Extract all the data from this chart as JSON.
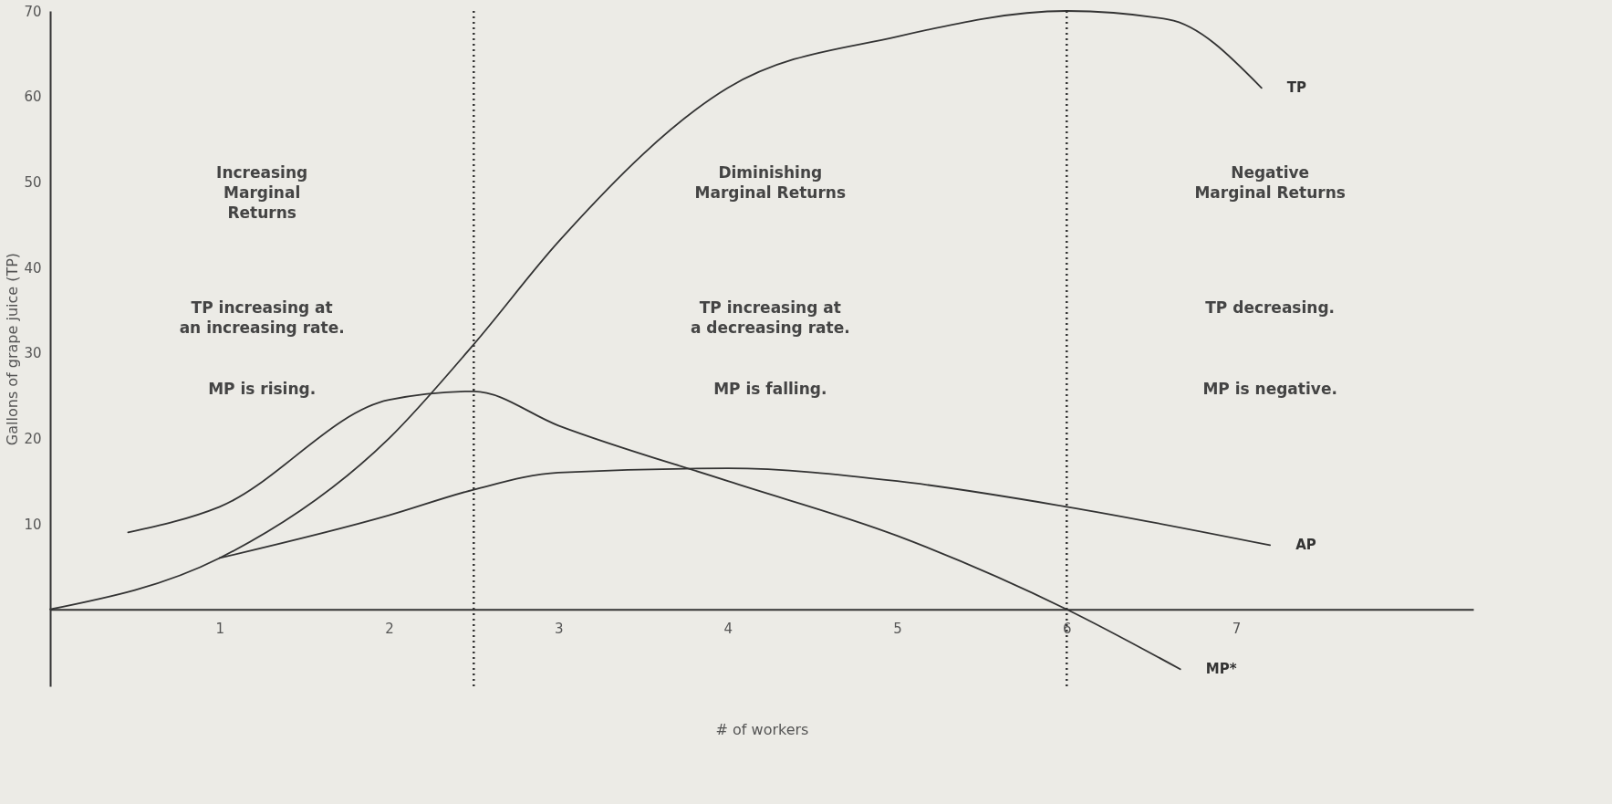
{
  "chart_data": {
    "type": "line",
    "xlabel": "# of workers",
    "ylabel": "Gallons of grape juice (TP)",
    "xlim": [
      0,
      8.4
    ],
    "xticks": [
      {
        "value": 1,
        "label": "1"
      },
      {
        "value": 2,
        "label": "2"
      },
      {
        "value": 3,
        "label": "3"
      },
      {
        "value": 4,
        "label": "4"
      },
      {
        "value": 5,
        "label": "5"
      },
      {
        "value": 6,
        "label": "6"
      },
      {
        "value": 7,
        "label": "7"
      }
    ],
    "ylim": [
      -9,
      70
    ],
    "yticks": [
      10,
      20,
      30,
      40,
      50,
      60,
      70
    ],
    "grid": false,
    "legend": false,
    "marker": "none",
    "line_style": "solid",
    "series": [
      {
        "name": "TP",
        "color": "#333333",
        "x": [
          0,
          1,
          2,
          2.5,
          3,
          4,
          5,
          6,
          6.6,
          7.15
        ],
        "values": [
          0,
          6,
          20,
          31,
          43,
          61,
          67,
          70,
          69,
          61
        ]
      },
      {
        "name": "AP",
        "color": "#333333",
        "x": [
          1,
          2,
          2.5,
          3,
          4,
          5,
          6,
          7.2
        ],
        "values": [
          6,
          11,
          14,
          16,
          16.5,
          15,
          12,
          7.5
        ]
      },
      {
        "name": "MP*",
        "color": "#333333",
        "x": [
          0.46,
          1,
          2,
          2.5,
          3,
          4,
          5,
          6,
          6.67
        ],
        "values": [
          9,
          12,
          24.5,
          25.5,
          21.5,
          15,
          8.6,
          0,
          -7
        ]
      }
    ],
    "ref_lines": [
      {
        "axis": "x",
        "value": 2.5,
        "line_style": "dotted",
        "color": "#333333"
      },
      {
        "axis": "x",
        "value": 6,
        "line_style": "dotted",
        "color": "#333333"
      }
    ],
    "annotations": [
      "Increasing\nMarginal\nReturns",
      "TP increasing at\nan increasing rate.",
      "MP is rising.",
      "Diminishing\nMarginal Returns",
      "TP increasing at\na decreasing rate.",
      "MP is falling.",
      "Negative\nMarginal Returns",
      "TP decreasing.",
      "MP is negative."
    ]
  }
}
